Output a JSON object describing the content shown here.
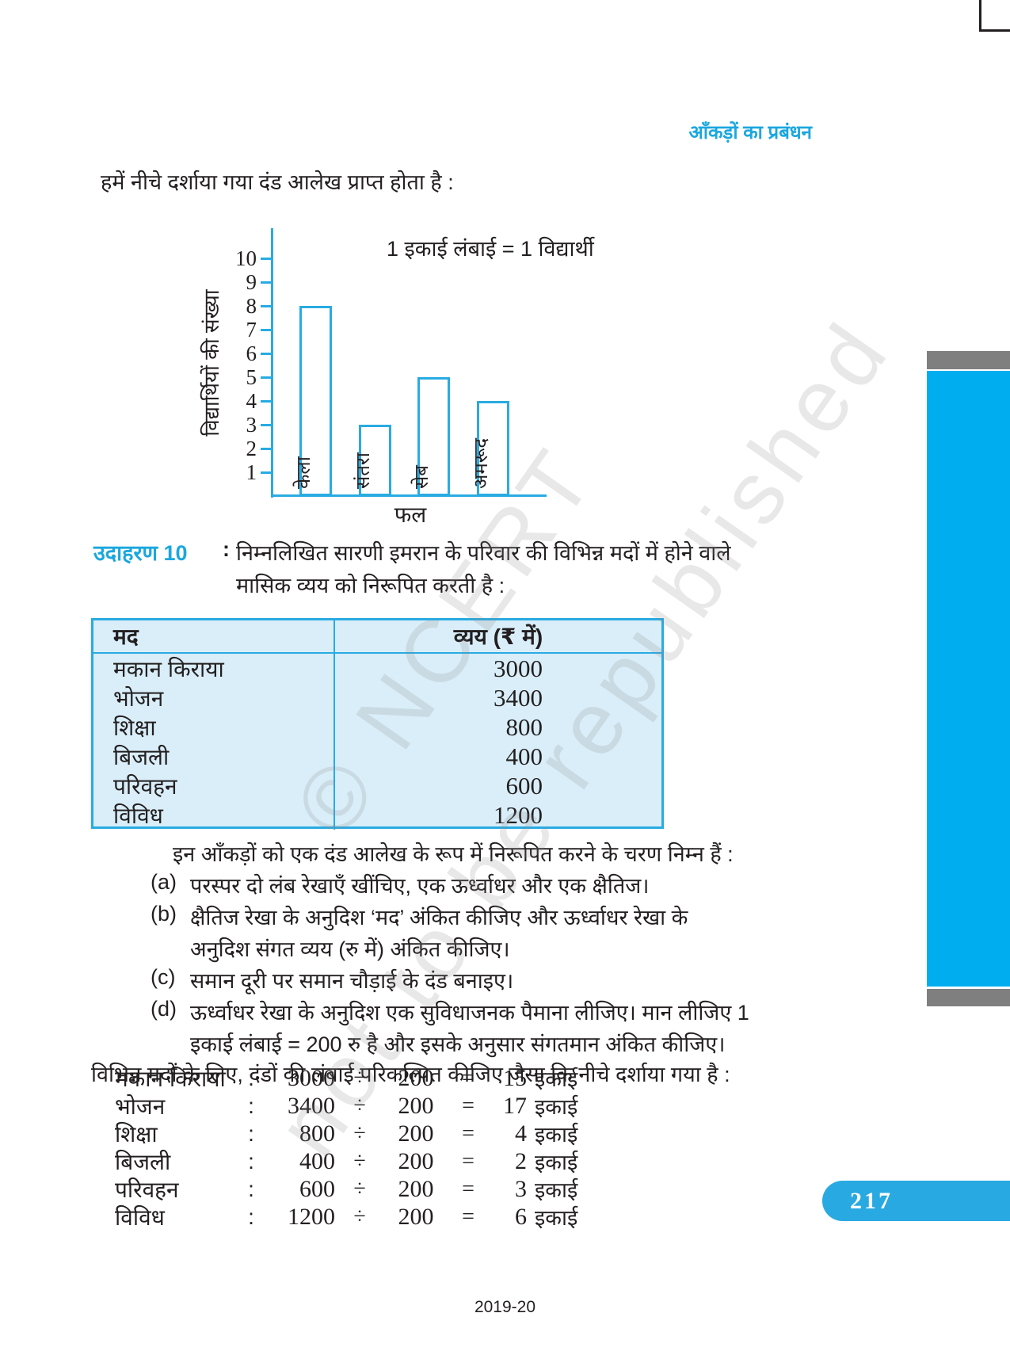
{
  "colors": {
    "accent": "#29abe2",
    "sidebar_blue": "#00aeef",
    "sidebar_gray": "#7f7f7f",
    "table_bg": "#d9eef9",
    "badge_bg": "#29a9e1"
  },
  "page": {
    "header": "आँकड़ों का प्रबंधन",
    "intro": "हमें नीचे दर्शाया गया दंड आलेख प्राप्त होता है :",
    "page_number": "217",
    "footer": "2019-20",
    "watermark_line1": "© NCERT",
    "watermark_line2": "not to be republished"
  },
  "chart_data": {
    "type": "bar",
    "legend": "1 इकाई लंबाई = 1 विद्यार्थी",
    "categories": [
      "केला",
      "संतरा",
      "सेब",
      "अमरूद"
    ],
    "values": [
      8,
      3,
      5,
      4
    ],
    "xlabel": "फल",
    "ylabel": "विद्यार्थियों की संख्या",
    "ylim": [
      0,
      10
    ],
    "yticks": [
      1,
      2,
      3,
      4,
      5,
      6,
      7,
      8,
      9,
      10
    ],
    "grid": "off",
    "bar_fill": "#ffffff",
    "bar_border": "#29abe2"
  },
  "example": {
    "label": "उदाहरण 10",
    "colon": ":",
    "line1": "निम्नलिखित सारणी इमरान के परिवार की विभिन्न मदों में होने वाले",
    "line2": "मासिक व्यय को निरूपित करती है :"
  },
  "table": {
    "col1_header": "मद",
    "col2_header": "व्यय (₹ में)",
    "rows": [
      {
        "item": "मकान किराया",
        "value": "3000"
      },
      {
        "item": "भोजन",
        "value": "3400"
      },
      {
        "item": "शिक्षा",
        "value": "800"
      },
      {
        "item": "बिजली",
        "value": "400"
      },
      {
        "item": "परिवहन",
        "value": "600"
      },
      {
        "item": "विविध",
        "value": "1200"
      }
    ]
  },
  "steps": {
    "intro": "इन आँकड़ों को एक दंड आलेख के रूप में निरूपित करने के चरण निम्न हैं :",
    "items": [
      {
        "label": "(a)",
        "lines": [
          "परस्पर दो लंब रेखाएँ खींचिए, एक ऊर्ध्वाधर और एक क्षैतिज।"
        ]
      },
      {
        "label": "(b)",
        "lines": [
          "क्षैतिज रेखा के अनुदिश ‘मद’ अंकित कीजिए और ऊर्ध्वाधर रेखा के",
          "अनुदिश संगत व्यय (रु में) अंकित कीजिए।"
        ]
      },
      {
        "label": "(c)",
        "lines": [
          "समान दूरी पर समान चौड़ाई के दंड बनाइए।"
        ]
      },
      {
        "label": "(d)",
        "lines": [
          "ऊर्ध्वाधर रेखा के अनुदिश एक सुविधाजनक पैमाना लीजिए। मान लीजिए 1",
          "इकाई लंबाई = 200 रु है और इसके अनुसार संगतमान अंकित कीजिए।"
        ]
      }
    ],
    "outro": "विभिन्न मदों के लिए, दंडों की लंबाई परिकल्पित कीजिए जैसा कि नीचे दर्शाया गया है :"
  },
  "calculations": {
    "rows": [
      {
        "item": "मकान किराया",
        "colon": ":",
        "value": "3000",
        "op": "÷",
        "divisor": "200",
        "eq": "=",
        "result": "15",
        "unit": "इकाई"
      },
      {
        "item": "भोजन",
        "colon": ":",
        "value": "3400",
        "op": "÷",
        "divisor": "200",
        "eq": "=",
        "result": "17",
        "unit": "इकाई"
      },
      {
        "item": "शिक्षा",
        "colon": ":",
        "value": "800",
        "op": "÷",
        "divisor": "200",
        "eq": "=",
        "result": "4",
        "unit": "इकाई"
      },
      {
        "item": "बिजली",
        "colon": ":",
        "value": "400",
        "op": "÷",
        "divisor": "200",
        "eq": "=",
        "result": "2",
        "unit": "इकाई"
      },
      {
        "item": "परिवहन",
        "colon": ":",
        "value": "600",
        "op": "÷",
        "divisor": "200",
        "eq": "=",
        "result": "3",
        "unit": "इकाई"
      },
      {
        "item": "विविध",
        "colon": ":",
        "value": "1200",
        "op": "÷",
        "divisor": "200",
        "eq": "=",
        "result": "6",
        "unit": "इकाई"
      }
    ]
  }
}
